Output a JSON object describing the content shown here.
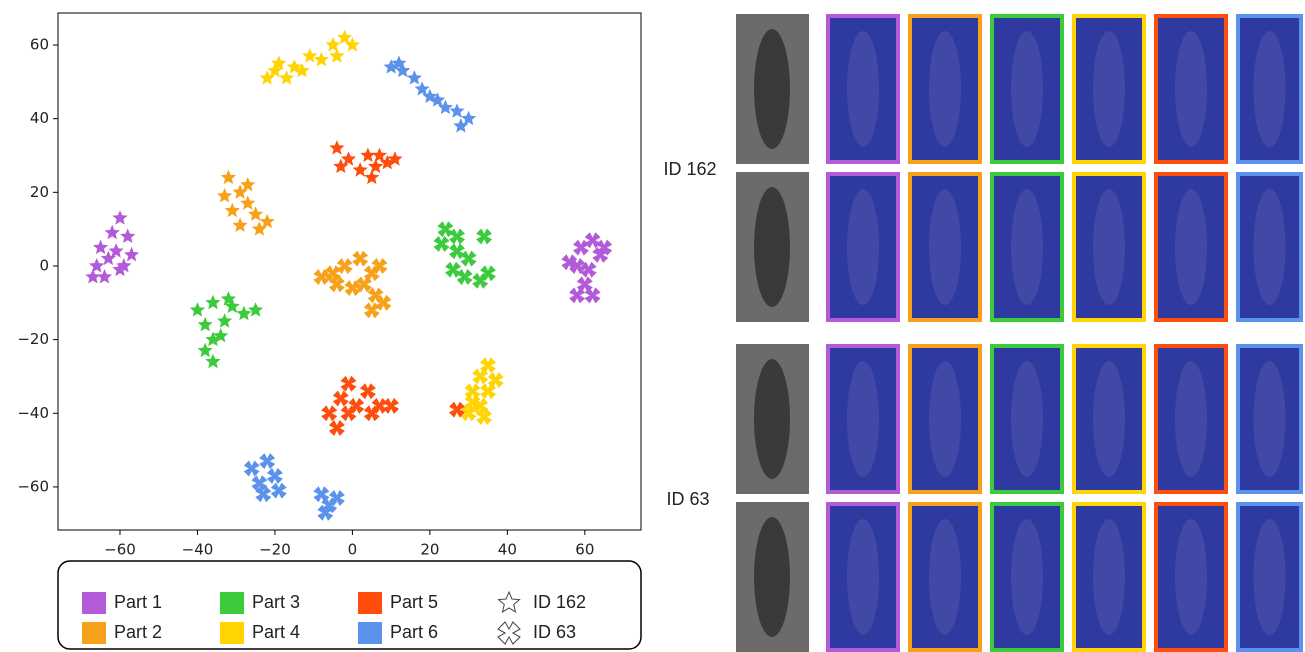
{
  "chart_data": {
    "type": "scatter",
    "xlim": [
      -76,
      74.5
    ],
    "ylim": [
      -71.7,
      68.7
    ],
    "xticks": [
      {
        "value": -60,
        "label": "−60"
      },
      {
        "value": -40,
        "label": "−40"
      },
      {
        "value": -20,
        "label": "−20"
      },
      0,
      20,
      40,
      60
    ],
    "yticks": [
      {
        "value": -60,
        "label": "−60"
      },
      {
        "value": -40,
        "label": "−40"
      },
      {
        "value": -20,
        "label": "−20"
      },
      0,
      20,
      40,
      60
    ],
    "ids": [
      {
        "name": "ID 162",
        "marker": "star"
      },
      {
        "name": "ID 63",
        "marker": "cross"
      }
    ],
    "series": [
      {
        "name": "Part 1",
        "color": "#b35ad8",
        "clusters": [
          {
            "x": [
              -60,
              -58,
              -61,
              -59,
              -63,
              -66,
              -67,
              -64,
              -62,
              -57,
              -65,
              -60
            ],
            "y": [
              13,
              8,
              4,
              0,
              2,
              0,
              -3,
              -3,
              9,
              3,
              5,
              -1
            ]
          },
          {
            "x": [
              62,
              59,
              64,
              58,
              61,
              60,
              62,
              58,
              65,
              56
            ],
            "y": [
              7,
              5,
              3,
              0,
              -1,
              -5,
              -8,
              -8,
              5,
              1
            ]
          }
        ]
      },
      {
        "name": "Part 2",
        "color": "#f7a11b",
        "clusters": [
          {
            "x": [
              -32,
              -29,
              -27,
              -25,
              -31,
              -29,
              -24,
              -33,
              -27,
              -22
            ],
            "y": [
              24,
              20,
              17,
              14,
              15,
              11,
              10,
              19,
              22,
              12
            ]
          },
          {
            "x": [
              -8,
              -4,
              -2,
              2,
              5,
              3,
              6,
              8,
              0,
              -5,
              7,
              5
            ],
            "y": [
              -3,
              -5,
              0,
              2,
              -2,
              -5,
              -8,
              -10,
              -6,
              -2,
              0,
              -12
            ]
          }
        ]
      },
      {
        "name": "Part 3",
        "color": "#3ccb3c",
        "clusters": [
          {
            "x": [
              -40,
              -36,
              -32,
              -28,
              -25,
              -38,
              -36,
              -38,
              -36,
              -33,
              -31,
              -34
            ],
            "y": [
              -12,
              -10,
              -9,
              -13,
              -12,
              -16,
              -20,
              -23,
              -26,
              -15,
              -11,
              -19
            ]
          },
          {
            "x": [
              24,
              27,
              34,
              27,
              30,
              26,
              29,
              33,
              35,
              23
            ],
            "y": [
              10,
              8,
              8,
              4,
              2,
              -1,
              -3,
              -4,
              -2,
              6
            ]
          }
        ]
      },
      {
        "name": "Part 4",
        "color": "#ffd400",
        "clusters": [
          {
            "x": [
              -22,
              -19,
              -15,
              -11,
              -8,
              -17,
              -13,
              -5,
              -2,
              0,
              -4,
              -20
            ],
            "y": [
              51,
              55,
              54,
              57,
              56,
              51,
              53,
              60,
              62,
              60,
              57,
              53
            ]
          },
          {
            "x": [
              35,
              33,
              31,
              35,
              33,
              30,
              34,
              31,
              37
            ],
            "y": [
              -27,
              -30,
              -34,
              -34,
              -38,
              -40,
              -41,
              -37,
              -31
            ]
          }
        ]
      },
      {
        "name": "Part 5",
        "color": "#ff4d0d",
        "clusters": [
          {
            "x": [
              -4,
              -1,
              2,
              5,
              7,
              9,
              4,
              -3,
              11,
              6
            ],
            "y": [
              32,
              29,
              26,
              24,
              30,
              28,
              30,
              27,
              29,
              27
            ]
          },
          {
            "x": [
              -6,
              -3,
              -1,
              1,
              4,
              5,
              7,
              10,
              -4,
              -1,
              27
            ],
            "y": [
              -40,
              -36,
              -32,
              -38,
              -34,
              -40,
              -38,
              -38,
              -44,
              -40,
              -39
            ]
          }
        ]
      },
      {
        "name": "Part 6",
        "color": "#5b93ec",
        "clusters": [
          {
            "x": [
              10,
              13,
              16,
              18,
              20,
              24,
              27,
              30,
              28,
              22,
              12
            ],
            "y": [
              54,
              53,
              51,
              48,
              46,
              43,
              42,
              40,
              38,
              45,
              55
            ]
          },
          {
            "x": [
              -26,
              -22,
              -20,
              -24,
              -19,
              -23,
              -8,
              -6,
              -7,
              -4
            ],
            "y": [
              -55,
              -53,
              -57,
              -59,
              -61,
              -62,
              -62,
              -65,
              -67,
              -63
            ]
          }
        ]
      }
    ]
  }
}
